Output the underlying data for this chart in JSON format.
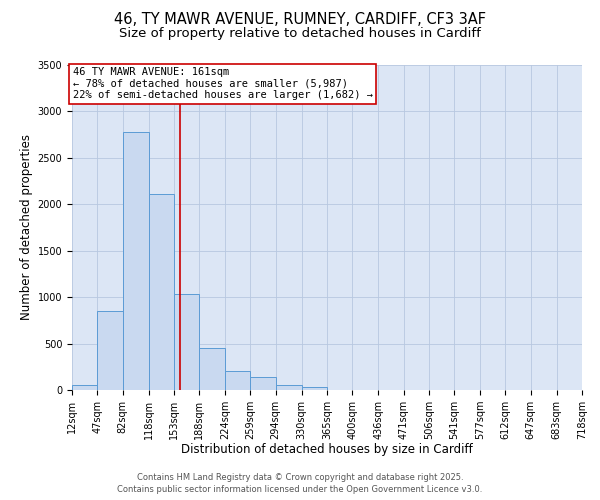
{
  "title_line1": "46, TY MAWR AVENUE, RUMNEY, CARDIFF, CF3 3AF",
  "title_line2": "Size of property relative to detached houses in Cardiff",
  "xlabel": "Distribution of detached houses by size in Cardiff",
  "ylabel": "Number of detached properties",
  "bin_edges": [
    12,
    47,
    82,
    118,
    153,
    188,
    224,
    259,
    294,
    330,
    365,
    400,
    436,
    471,
    506,
    541,
    577,
    612,
    647,
    683,
    718
  ],
  "bin_counts": [
    55,
    850,
    2780,
    2110,
    1030,
    455,
    210,
    145,
    55,
    30,
    5,
    0,
    0,
    0,
    0,
    0,
    0,
    0,
    0,
    0
  ],
  "bar_facecolor": "#c9d9f0",
  "bar_edgecolor": "#5b9bd5",
  "grid_color": "#b8c8e0",
  "background_color": "#dce6f5",
  "property_size": 161,
  "red_line_color": "#cc0000",
  "annotation_text_line1": "46 TY MAWR AVENUE: 161sqm",
  "annotation_text_line2": "← 78% of detached houses are smaller (5,987)",
  "annotation_text_line3": "22% of semi-detached houses are larger (1,682) →",
  "annotation_box_edgecolor": "#cc0000",
  "annotation_box_facecolor": "#ffffff",
  "ylim": [
    0,
    3500
  ],
  "yticks": [
    0,
    500,
    1000,
    1500,
    2000,
    2500,
    3000,
    3500
  ],
  "footer_line1": "Contains HM Land Registry data © Crown copyright and database right 2025.",
  "footer_line2": "Contains public sector information licensed under the Open Government Licence v3.0.",
  "title_fontsize": 10.5,
  "subtitle_fontsize": 9.5,
  "tick_label_fontsize": 7,
  "axis_label_fontsize": 8.5,
  "footer_fontsize": 6,
  "annotation_fontsize": 7.5
}
